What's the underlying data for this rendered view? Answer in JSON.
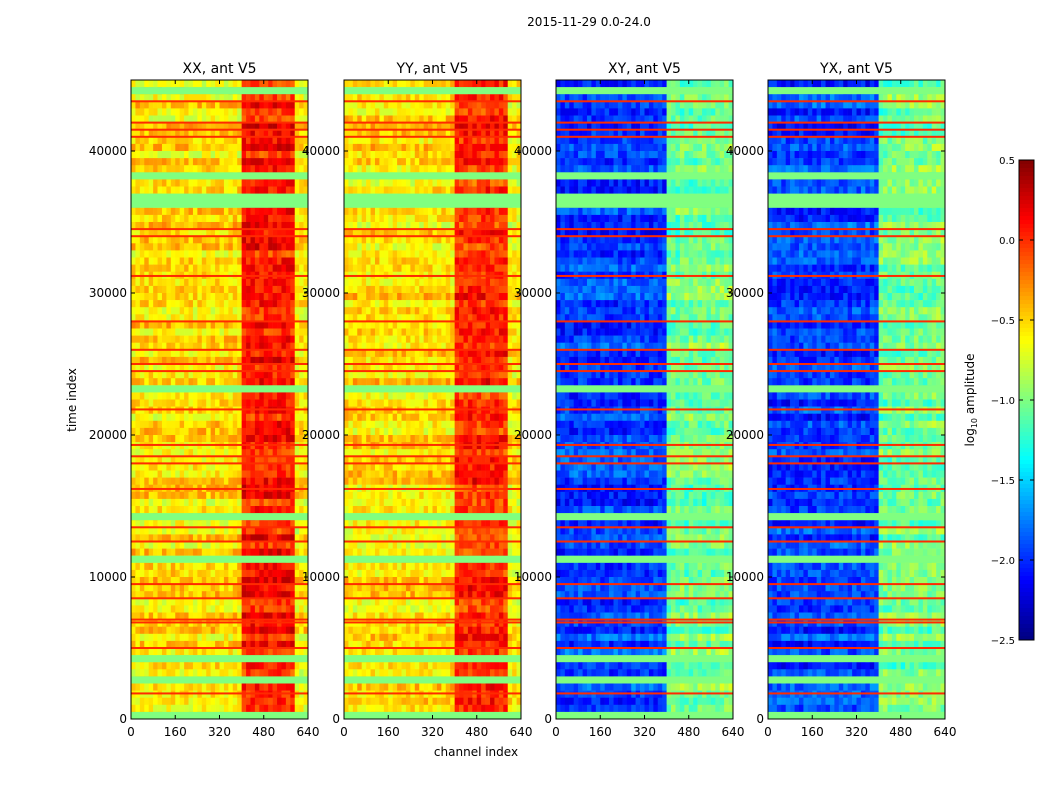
{
  "chart_data": {
    "type": "heatmap",
    "suptitle": "2015-11-29 0.0-24.0",
    "xlabel": "channel index",
    "ylabel": "time index",
    "xlim": [
      0,
      640
    ],
    "ylim": [
      0,
      45000
    ],
    "xticks": [
      "0",
      "160",
      "320",
      "480",
      "640"
    ],
    "xtick_values": [
      0,
      160,
      320,
      480,
      640
    ],
    "yticks": [
      "0",
      "10000",
      "20000",
      "30000",
      "40000"
    ],
    "ytick_values": [
      0,
      10000,
      20000,
      30000,
      40000
    ],
    "colorbar": {
      "label_prefix": "log",
      "label_sub": "10",
      "label_suffix": " amplitude",
      "clim": [
        -2.5,
        0.5
      ],
      "ticks": [
        "0.5",
        "0.0",
        "−0.5",
        "−1.0",
        "−1.5",
        "−2.0",
        "−2.5"
      ],
      "tick_values": [
        0.5,
        0.0,
        -0.5,
        -1.0,
        -1.5,
        -2.0,
        -2.5
      ],
      "colormap": "jet"
    },
    "panels": [
      {
        "title": "XX, ant V5",
        "channel_profile": [
          [
            0,
            400,
            -0.55
          ],
          [
            400,
            600,
            0.05
          ],
          [
            600,
            640,
            -0.6
          ]
        ]
      },
      {
        "title": "YY, ant V5",
        "channel_profile": [
          [
            0,
            400,
            -0.55
          ],
          [
            400,
            600,
            0.0
          ],
          [
            600,
            640,
            -0.6
          ]
        ]
      },
      {
        "title": "XY, ant V5",
        "channel_profile": [
          [
            0,
            400,
            -1.95
          ],
          [
            400,
            600,
            -1.05
          ],
          [
            600,
            640,
            -1.0
          ]
        ]
      },
      {
        "title": "YX, ant V5",
        "channel_profile": [
          [
            0,
            400,
            -1.95
          ],
          [
            400,
            600,
            -1.05
          ],
          [
            600,
            640,
            -1.0
          ]
        ]
      }
    ],
    "flagged_time_rows_red": [
      43500,
      42000,
      41500,
      41000,
      34500,
      34000,
      31200,
      28000,
      26000,
      25000,
      24500,
      21800,
      19300,
      18500,
      18000,
      16200,
      13500,
      12500,
      9500,
      8500,
      7000,
      6800,
      5000,
      1800
    ],
    "flagged_time_rows_green": [
      [
        36000,
        37000
      ],
      [
        44000,
        44500
      ],
      [
        38000,
        38500
      ],
      [
        23000,
        23500
      ],
      [
        14000,
        14500
      ],
      [
        11000,
        11500
      ],
      [
        4000,
        4500
      ],
      [
        2500,
        3000
      ],
      [
        0,
        500
      ]
    ]
  }
}
